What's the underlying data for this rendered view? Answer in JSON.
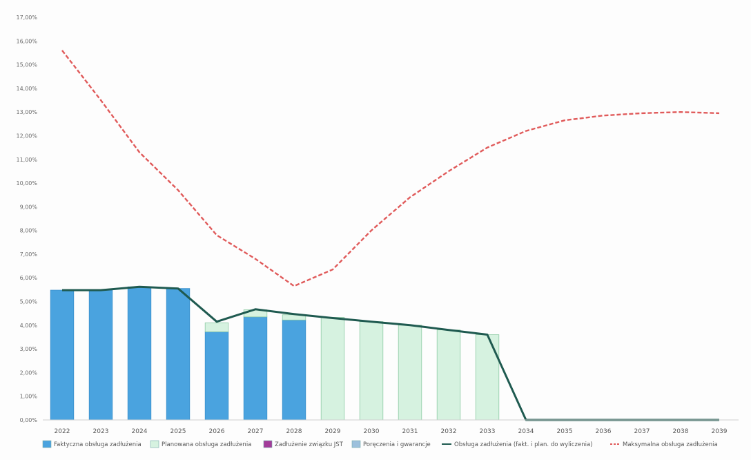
{
  "chart_data": {
    "type": "bar",
    "title": "",
    "xlabel": "",
    "ylabel": "",
    "categories": [
      "2022",
      "2023",
      "2024",
      "2025",
      "2026",
      "2027",
      "2028",
      "2029",
      "2030",
      "2031",
      "2032",
      "2033",
      "2034",
      "2035",
      "2036",
      "2037",
      "2038",
      "2039"
    ],
    "ylim": [
      0,
      17
    ],
    "yticks": [
      "0,00%",
      "1,00%",
      "2,00%",
      "3,00%",
      "4,00%",
      "5,00%",
      "6,00%",
      "7,00%",
      "8,00%",
      "9,00%",
      "10,00%",
      "11,00%",
      "12,00%",
      "13,00%",
      "14,00%",
      "15,00%",
      "16,00%",
      "17,00%"
    ],
    "grid": false,
    "legend_position": "bottom",
    "bar_series": [
      {
        "name": "Faktyczna obsługa zadłużenia",
        "color": "#4aa3df",
        "values": [
          5.48,
          5.48,
          5.62,
          5.55,
          3.72,
          4.35,
          4.22,
          null,
          null,
          null,
          null,
          null,
          null,
          null,
          null,
          null,
          null,
          null
        ]
      },
      {
        "name": "Planowana obsługa zadłużenia",
        "color": "#d6f2e0",
        "values": [
          null,
          null,
          null,
          null,
          0.38,
          0.3,
          0.22,
          4.33,
          4.15,
          4.0,
          3.8,
          3.6,
          null,
          null,
          null,
          null,
          null,
          null
        ]
      },
      {
        "name": "Zadłużenie związku JST",
        "color": "#a33c9a",
        "values": [
          null,
          null,
          null,
          null,
          null,
          null,
          null,
          null,
          null,
          null,
          null,
          null,
          null,
          null,
          null,
          null,
          null,
          null
        ]
      },
      {
        "name": "Poręczenia i gwarancje",
        "color": "#9cc0dc",
        "values": [
          null,
          null,
          null,
          null,
          null,
          null,
          null,
          null,
          null,
          null,
          null,
          null,
          null,
          null,
          null,
          null,
          null,
          null
        ]
      }
    ],
    "line_series": [
      {
        "name": "Obsługa zadłużenia (fakt. i plan. do wyliczenia)",
        "color": "#1f5a50",
        "style": "solid",
        "values": [
          5.48,
          5.48,
          5.62,
          5.55,
          4.15,
          4.67,
          4.47,
          4.3,
          4.15,
          4.0,
          3.8,
          3.6,
          0,
          0,
          0,
          0,
          0,
          0
        ]
      },
      {
        "name": "Maksymalna obsługa zadłużenia",
        "color": "#e05a5a",
        "style": "dashed",
        "values": [
          15.6,
          13.5,
          11.3,
          9.7,
          7.8,
          6.8,
          5.65,
          6.35,
          8.0,
          9.4,
          10.5,
          11.5,
          12.2,
          12.65,
          12.85,
          12.95,
          13.0,
          12.95
        ]
      }
    ]
  }
}
